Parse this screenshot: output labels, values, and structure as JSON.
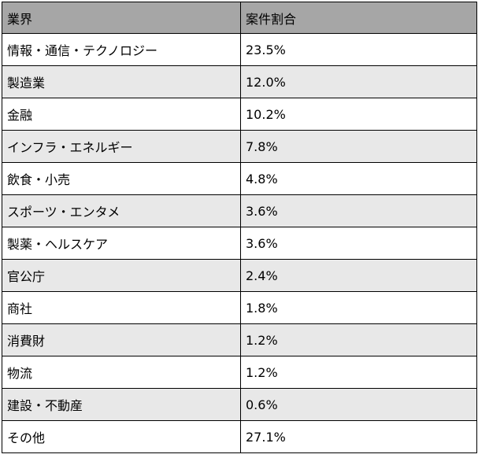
{
  "table": {
    "headers": [
      "業界",
      "案件割合"
    ],
    "rows": [
      {
        "industry": "情報・通信・テクノロジー",
        "share": "23.5%"
      },
      {
        "industry": "製造業",
        "share": "12.0%"
      },
      {
        "industry": "金融",
        "share": "10.2%"
      },
      {
        "industry": "インフラ・エネルギー",
        "share": "7.8%"
      },
      {
        "industry": "飲食・小売",
        "share": "4.8%"
      },
      {
        "industry": "スポーツ・エンタメ",
        "share": "3.6%"
      },
      {
        "industry": "製薬・ヘルスケア",
        "share": "3.6%"
      },
      {
        "industry": "官公庁",
        "share": "2.4%"
      },
      {
        "industry": "商社",
        "share": "1.8%"
      },
      {
        "industry": "消費財",
        "share": "1.2%"
      },
      {
        "industry": "物流",
        "share": "1.2%"
      },
      {
        "industry": "建設・不動産",
        "share": "0.6%"
      },
      {
        "industry": "その他",
        "share": "27.1%"
      }
    ]
  },
  "colors": {
    "header_bg": "#a6a6a6",
    "row_even_bg": "#ffffff",
    "row_odd_bg": "#e8e8e8",
    "border": "#000000"
  }
}
